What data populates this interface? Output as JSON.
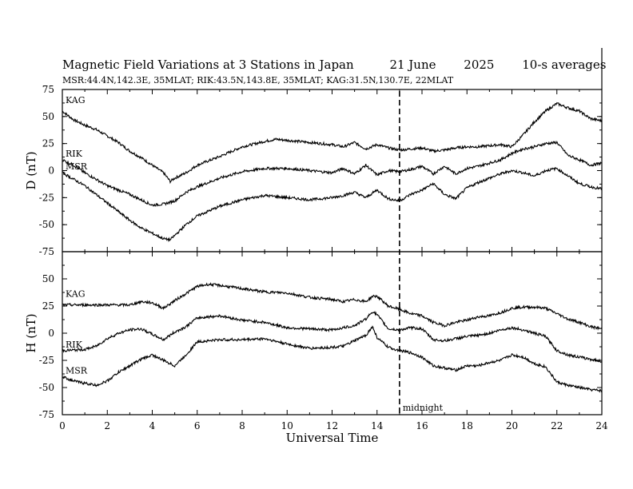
{
  "header": {
    "title": "Magnetic Field Variations at 3 Stations in Japan",
    "date": "21 June",
    "year": "2025",
    "averaging": "10-s averages",
    "stations_line": "MSR:44.4N,142.3E, 35MLAT;  RIK:43.5N,143.8E, 35MLAT;  KAG:31.5N,130.7E, 22MLAT"
  },
  "chart_data": [
    {
      "type": "line",
      "panel": "top",
      "ylabel": "D (nT)",
      "ylim": [
        -75,
        75
      ],
      "yticks": [
        75,
        50,
        25,
        0,
        -25,
        -50,
        -75
      ],
      "xlim": [
        0,
        24
      ],
      "series": [
        {
          "name": "KAG",
          "x": [
            0,
            0.5,
            1,
            1.5,
            2,
            2.5,
            3,
            3.5,
            4,
            4.5,
            4.8,
            5,
            5.5,
            6,
            7,
            8,
            9,
            9.5,
            10,
            11,
            12,
            12.5,
            13,
            13.5,
            14,
            14.5,
            15,
            15.5,
            16,
            16.5,
            17,
            17.5,
            18,
            18.5,
            19,
            19.5,
            20,
            20.5,
            21,
            21.5,
            22,
            22.5,
            23,
            23.5,
            24
          ],
          "y": [
            55,
            47,
            42,
            38,
            32,
            26,
            18,
            12,
            5,
            -2,
            -10,
            -7,
            -2,
            5,
            13,
            22,
            27,
            29,
            28,
            26,
            24,
            22,
            26,
            20,
            24,
            21,
            19,
            20,
            21,
            18,
            19,
            21,
            22,
            22,
            23,
            24,
            22,
            33,
            45,
            55,
            62,
            58,
            55,
            48,
            46
          ]
        },
        {
          "name": "RIK",
          "x": [
            0,
            0.5,
            1,
            1.5,
            2,
            2.5,
            3,
            3.5,
            4,
            4.5,
            5,
            5.5,
            6,
            7,
            8,
            9,
            10,
            11,
            12,
            12.5,
            13,
            13.5,
            14,
            14.5,
            15,
            15.5,
            16,
            16.5,
            17,
            17.5,
            18,
            18.5,
            19,
            19.5,
            20,
            20.5,
            21,
            21.5,
            22,
            22.5,
            23,
            23.5,
            24
          ],
          "y": [
            10,
            5,
            -2,
            -8,
            -14,
            -18,
            -22,
            -27,
            -32,
            -31,
            -28,
            -20,
            -15,
            -7,
            -1,
            2,
            2,
            0,
            -2,
            2,
            -3,
            5,
            -4,
            0,
            -1,
            1,
            4,
            -3,
            4,
            -3,
            2,
            4,
            7,
            10,
            16,
            20,
            22,
            25,
            26,
            14,
            10,
            5,
            7
          ]
        },
        {
          "name": "MSR",
          "x": [
            0,
            0.5,
            1,
            1.5,
            2,
            2.5,
            3,
            3.5,
            4,
            4.5,
            4.8,
            5,
            5.5,
            6,
            7,
            8,
            9,
            10,
            11,
            12,
            12.5,
            13,
            13.5,
            14,
            14.5,
            15,
            15.5,
            16,
            16.5,
            17,
            17.5,
            18,
            18.5,
            19,
            19.5,
            20,
            20.5,
            21,
            21.5,
            22,
            22.5,
            23,
            23.5,
            24
          ],
          "y": [
            -2,
            -8,
            -14,
            -22,
            -30,
            -38,
            -46,
            -53,
            -58,
            -63,
            -64,
            -60,
            -50,
            -42,
            -33,
            -27,
            -23,
            -25,
            -27,
            -25,
            -23,
            -20,
            -25,
            -18,
            -26,
            -28,
            -22,
            -18,
            -12,
            -22,
            -26,
            -16,
            -11,
            -7,
            -3,
            0,
            -2,
            -5,
            0,
            2,
            -5,
            -12,
            -15,
            -17
          ]
        }
      ],
      "series_labels": [
        "KAG",
        "RIK",
        "MSR"
      ]
    },
    {
      "type": "line",
      "panel": "bottom",
      "ylabel": "H (nT)",
      "xlabel": "Universal Time",
      "ylim": [
        -75,
        75
      ],
      "yticks": [
        50,
        25,
        0,
        -25,
        -50,
        -75
      ],
      "xlim": [
        0,
        24
      ],
      "xticks": [
        0,
        2,
        4,
        6,
        8,
        10,
        12,
        14,
        16,
        18,
        20,
        22,
        24
      ],
      "series": [
        {
          "name": "KAG",
          "x": [
            0,
            1,
            2,
            3,
            3.5,
            4,
            4.5,
            5,
            6,
            6.5,
            7,
            8,
            9,
            10,
            11,
            12,
            12.5,
            13,
            13.5,
            13.8,
            14,
            14.5,
            15,
            15.5,
            16,
            16.5,
            17,
            17.5,
            18,
            18.5,
            19,
            19.5,
            20,
            20.5,
            21,
            21.5,
            22,
            22.5,
            23,
            23.5,
            24
          ],
          "y": [
            26,
            26,
            26,
            26,
            29,
            28,
            23,
            30,
            43,
            45,
            44,
            41,
            38,
            37,
            33,
            31,
            29,
            31,
            29,
            34,
            34,
            25,
            22,
            18,
            16,
            10,
            7,
            10,
            12,
            15,
            16,
            19,
            23,
            24,
            24,
            23,
            18,
            13,
            10,
            6,
            4
          ]
        },
        {
          "name": "RIK",
          "x": [
            0,
            1,
            1.5,
            2,
            2.5,
            3,
            3.5,
            4,
            4.5,
            5,
            5.5,
            6,
            7,
            8,
            9,
            10,
            11,
            12,
            12.5,
            13,
            13.5,
            13.8,
            14,
            14.5,
            15,
            15.5,
            16,
            16.5,
            17,
            17.5,
            18,
            18.5,
            19,
            19.5,
            20,
            20.5,
            21,
            21.5,
            22,
            22.5,
            23,
            23.5,
            24
          ],
          "y": [
            -16,
            -15,
            -12,
            -5,
            0,
            3,
            4,
            -1,
            -6,
            1,
            6,
            14,
            16,
            12,
            10,
            5,
            4,
            3,
            5,
            7,
            13,
            20,
            17,
            4,
            3,
            5,
            4,
            -6,
            -7,
            -5,
            -3,
            -2,
            0,
            3,
            5,
            3,
            0,
            -3,
            -16,
            -20,
            -22,
            -24,
            -26
          ]
        },
        {
          "name": "MSR",
          "x": [
            0,
            0.5,
            1,
            1.5,
            2,
            2.5,
            3,
            3.5,
            4,
            4.5,
            5,
            5.5,
            6,
            7,
            8,
            9,
            10,
            11,
            12,
            12.5,
            13,
            13.5,
            13.8,
            14,
            14.5,
            15,
            15.5,
            16,
            16.5,
            17,
            17.5,
            18,
            18.5,
            19,
            19.5,
            20,
            20.5,
            21,
            21.5,
            22,
            22.5,
            23,
            23.5,
            24
          ],
          "y": [
            -40,
            -44,
            -46,
            -48,
            -44,
            -36,
            -30,
            -24,
            -20,
            -25,
            -30,
            -20,
            -8,
            -6,
            -6,
            -5,
            -10,
            -14,
            -13,
            -12,
            -7,
            -2,
            6,
            -4,
            -13,
            -16,
            -18,
            -22,
            -30,
            -32,
            -34,
            -30,
            -30,
            -27,
            -25,
            -20,
            -22,
            -28,
            -31,
            -45,
            -48,
            -50,
            -52,
            -53
          ]
        }
      ],
      "series_labels": [
        "KAG",
        "RIK",
        "MSR"
      ]
    }
  ],
  "annotations": {
    "midnight_label": "midnight",
    "midnight_ut": 15
  }
}
